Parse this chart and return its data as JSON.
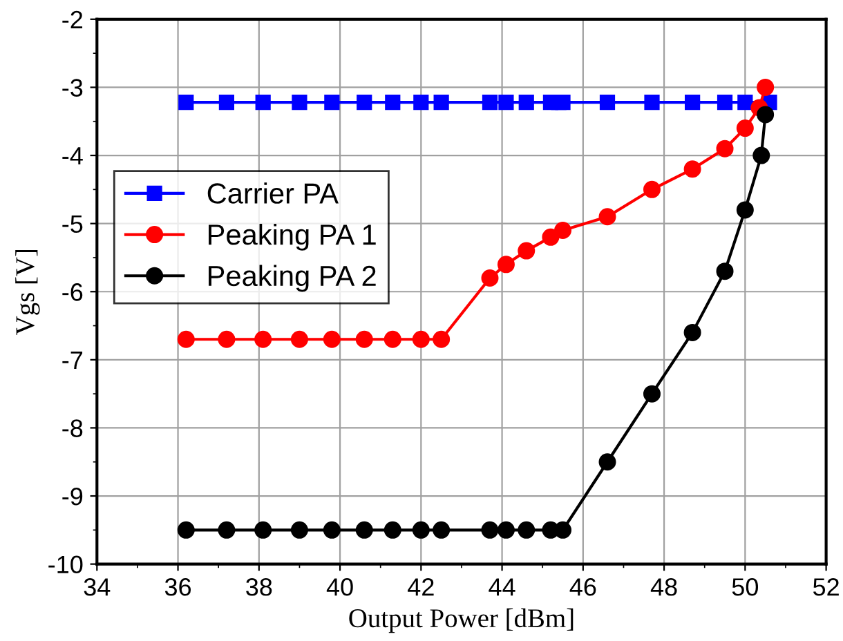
{
  "chart_data": {
    "type": "line",
    "xlabel": "Output Power [dBm]",
    "ylabel": "Vgs [V]",
    "xlim": [
      34,
      52
    ],
    "xticks": [
      34,
      36,
      38,
      40,
      42,
      44,
      46,
      48,
      50,
      52
    ],
    "ylim": [
      -10,
      -2
    ],
    "yticks": [
      -10,
      -9,
      -8,
      -7,
      -6,
      -5,
      -4,
      -3,
      -2
    ],
    "grid": true,
    "legend": "left",
    "line_style": "solid",
    "series": [
      {
        "name": "Carrier PA",
        "color": "#0000ff",
        "marker": "square",
        "x": [
          36.2,
          37.2,
          38.1,
          39.0,
          39.8,
          40.6,
          41.3,
          42.0,
          42.5,
          43.7,
          44.1,
          44.6,
          45.2,
          45.4,
          45.5,
          46.6,
          47.7,
          48.7,
          49.5,
          50.0,
          50.6
        ],
        "values": [
          -3.22,
          -3.22,
          -3.22,
          -3.22,
          -3.22,
          -3.22,
          -3.22,
          -3.22,
          -3.22,
          -3.22,
          -3.22,
          -3.22,
          -3.22,
          -3.22,
          -3.22,
          -3.22,
          -3.22,
          -3.22,
          -3.22,
          -3.22,
          -3.22
        ]
      },
      {
        "name": "Peaking PA 1",
        "color": "#ff0000",
        "marker": "circle",
        "x": [
          36.2,
          37.2,
          38.1,
          39.0,
          39.8,
          40.6,
          41.3,
          42.0,
          42.5,
          43.7,
          44.1,
          44.6,
          45.2,
          45.5,
          46.6,
          47.7,
          48.7,
          49.5,
          50.0,
          50.35,
          50.5
        ],
        "values": [
          -6.7,
          -6.7,
          -6.7,
          -6.7,
          -6.7,
          -6.7,
          -6.7,
          -6.7,
          -6.7,
          -5.8,
          -5.6,
          -5.4,
          -5.2,
          -5.1,
          -4.9,
          -4.5,
          -4.2,
          -3.9,
          -3.6,
          -3.3,
          -3.0
        ]
      },
      {
        "name": "Peaking PA 2",
        "color": "#000000",
        "marker": "circle",
        "x": [
          36.2,
          37.2,
          38.1,
          39.0,
          39.8,
          40.6,
          41.3,
          42.0,
          42.5,
          43.7,
          44.1,
          44.6,
          45.2,
          45.5,
          46.6,
          47.7,
          48.7,
          49.5,
          50.0,
          50.4,
          50.5
        ],
        "values": [
          -9.5,
          -9.5,
          -9.5,
          -9.5,
          -9.5,
          -9.5,
          -9.5,
          -9.5,
          -9.5,
          -9.5,
          -9.5,
          -9.5,
          -9.5,
          -9.5,
          -8.5,
          -7.5,
          -6.6,
          -5.7,
          -4.8,
          -4.0,
          -3.4
        ]
      }
    ]
  }
}
